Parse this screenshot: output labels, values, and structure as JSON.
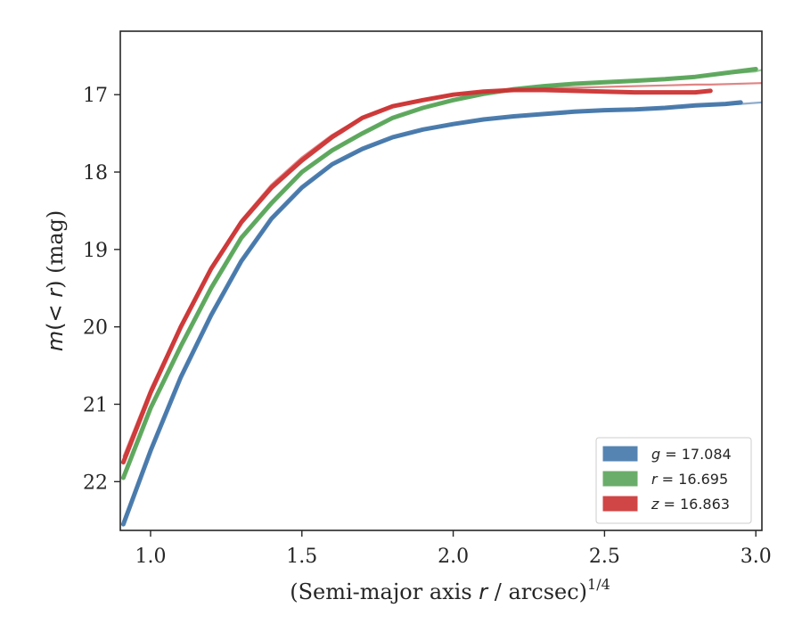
{
  "chart_data": {
    "type": "line",
    "title": "",
    "xlabel": "(Semi-major axis r / arcsec)",
    "xlabel_parts": {
      "prefix": "(Semi-major axis ",
      "var": "r",
      "suffix": " / arcsec)",
      "exponent": "1/4"
    },
    "ylabel": "m(< r) (mag)",
    "ylabel_parts": {
      "var": "m",
      "mid1": "(< ",
      "r": "r",
      "end": ") (mag)"
    },
    "xlim": [
      0.9,
      3.02
    ],
    "ylim": [
      22.63,
      16.18
    ],
    "y_inverted": true,
    "grid": false,
    "legend_position": "bottom-right",
    "xticks": [
      1.0,
      1.5,
      2.0,
      2.5,
      3.0
    ],
    "xtick_labels": [
      "1.0",
      "1.5",
      "2.0",
      "2.5",
      "3.0"
    ],
    "yticks": [
      17,
      18,
      19,
      20,
      21,
      22
    ],
    "ytick_labels": [
      "17",
      "18",
      "19",
      "20",
      "21",
      "22"
    ],
    "series": [
      {
        "name": "g = 17.084",
        "legend_var": "g",
        "legend_value": "= 17.084",
        "color": "#4477aa",
        "x": [
          0.91,
          1.0,
          1.1,
          1.2,
          1.3,
          1.4,
          1.5,
          1.6,
          1.7,
          1.8,
          1.9,
          2.0,
          2.1,
          2.2,
          2.3,
          2.4,
          2.5,
          2.6,
          2.7,
          2.8,
          2.9,
          2.95
        ],
        "y": [
          22.55,
          21.6,
          20.65,
          19.85,
          19.15,
          18.6,
          18.2,
          17.9,
          17.7,
          17.55,
          17.45,
          17.38,
          17.32,
          17.28,
          17.25,
          17.22,
          17.2,
          17.19,
          17.17,
          17.14,
          17.12,
          17.1
        ],
        "model_y": [
          22.52,
          21.58,
          20.63,
          19.84,
          19.15,
          18.6,
          18.2,
          17.91,
          17.71,
          17.56,
          17.46,
          17.39,
          17.33,
          17.29,
          17.26,
          17.23,
          17.21,
          17.19,
          17.17,
          17.15,
          17.13,
          17.12
        ]
      },
      {
        "name": "r = 16.695",
        "legend_var": "r",
        "legend_value": "= 16.695",
        "color": "#5aa55a",
        "x": [
          0.91,
          1.0,
          1.1,
          1.2,
          1.3,
          1.4,
          1.5,
          1.6,
          1.7,
          1.8,
          1.9,
          2.0,
          2.1,
          2.2,
          2.3,
          2.4,
          2.5,
          2.6,
          2.7,
          2.8,
          2.9,
          3.0
        ],
        "y": [
          21.95,
          21.05,
          20.25,
          19.5,
          18.85,
          18.4,
          18.0,
          17.72,
          17.5,
          17.3,
          17.17,
          17.07,
          16.99,
          16.93,
          16.89,
          16.86,
          16.84,
          16.82,
          16.8,
          16.77,
          16.72,
          16.67
        ],
        "model_y": [
          21.92,
          21.03,
          20.22,
          19.48,
          18.84,
          18.38,
          17.99,
          17.71,
          17.49,
          17.3,
          17.17,
          17.07,
          16.99,
          16.93,
          16.89,
          16.86,
          16.84,
          16.82,
          16.8,
          16.77,
          16.73,
          16.7
        ]
      },
      {
        "name": "z = 16.863",
        "legend_var": "z",
        "legend_value": "= 16.863",
        "color": "#cc3333",
        "x": [
          0.91,
          1.0,
          1.1,
          1.2,
          1.3,
          1.4,
          1.5,
          1.6,
          1.7,
          1.8,
          1.9,
          2.0,
          2.1,
          2.2,
          2.3,
          2.4,
          2.5,
          2.6,
          2.7,
          2.8,
          2.85
        ],
        "y": [
          21.75,
          20.85,
          20.0,
          19.25,
          18.65,
          18.2,
          17.85,
          17.55,
          17.3,
          17.15,
          17.07,
          17.0,
          16.96,
          16.94,
          16.94,
          16.95,
          16.96,
          16.97,
          16.97,
          16.97,
          16.95
        ],
        "model_y": [
          21.68,
          20.8,
          19.97,
          19.23,
          18.62,
          18.16,
          17.81,
          17.52,
          17.29,
          17.14,
          17.06,
          17.0,
          16.96,
          16.94,
          16.92,
          16.91,
          16.9,
          16.89,
          16.88,
          16.87,
          16.87
        ]
      }
    ]
  }
}
